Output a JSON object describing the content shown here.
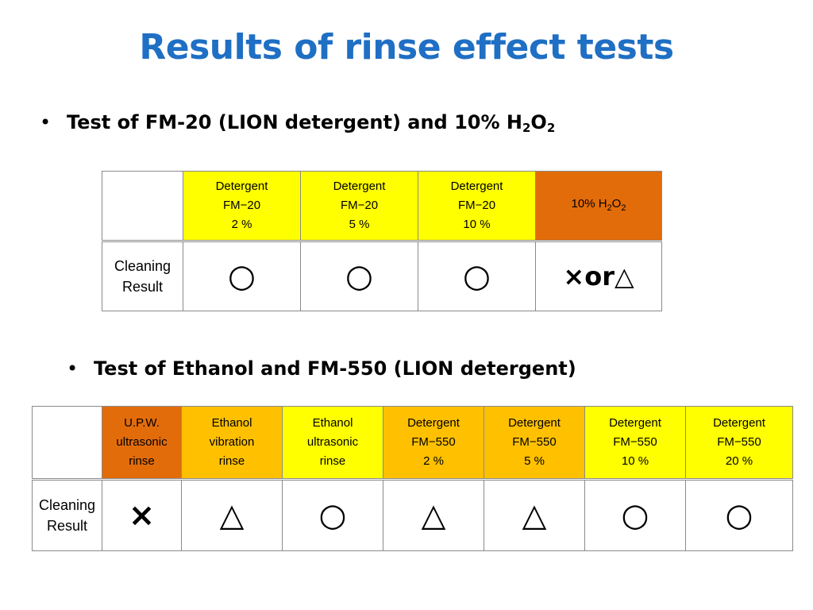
{
  "title": "Results of rinse effect tests",
  "bullet1": {
    "marker": "•",
    "text": "Test of FM-20 (LION detergent) and 10% H",
    "sub1": "2",
    "mid": "O",
    "sub2": "2"
  },
  "bullet2": {
    "marker": "•",
    "text": "Test of Ethanol and FM-550 (LION detergent)"
  },
  "table1": {
    "row_label_line1": "Cleaning",
    "row_label_line2": "Result",
    "headers": [
      {
        "line1": "Detergent",
        "line2": "FM−20",
        "line3": "2 %",
        "color": "#ffff00"
      },
      {
        "line1": "Detergent",
        "line2": "FM−20",
        "line3": "5 %",
        "color": "#ffff00"
      },
      {
        "line1": "Detergent",
        "line2": "FM−20",
        "line3": "10 %",
        "color": "#ffff00"
      },
      {
        "text": "10% H",
        "sub1": "2",
        "mid": "O",
        "sub2": "2",
        "color": "#e36c0a"
      }
    ],
    "results": [
      "○",
      "○",
      "○",
      "×or△"
    ]
  },
  "table2": {
    "row_label_line1": "Cleaning",
    "row_label_line2": "Result",
    "headers": [
      {
        "line1": "U.P.W.",
        "line2": "ultrasonic",
        "line3": "rinse",
        "color": "#e36c0a"
      },
      {
        "line1": "Ethanol",
        "line2": "vibration",
        "line3": "rinse",
        "color": "#ffc000"
      },
      {
        "line1": "Ethanol",
        "line2": "ultrasonic",
        "line3": "rinse",
        "color": "#ffff00"
      },
      {
        "line1": "Detergent",
        "line2": "FM−550",
        "line3": "2 %",
        "color": "#ffc000"
      },
      {
        "line1": "Detergent",
        "line2": "FM−550",
        "line3": "5 %",
        "color": "#ffc000"
      },
      {
        "line1": "Detergent",
        "line2": "FM−550",
        "line3": "10 %",
        "color": "#ffff00"
      },
      {
        "line1": "Detergent",
        "line2": "FM−550",
        "line3": "20 %",
        "color": "#ffff00"
      }
    ],
    "results": [
      "×",
      "△",
      "○",
      "△",
      "△",
      "○",
      "○"
    ]
  }
}
